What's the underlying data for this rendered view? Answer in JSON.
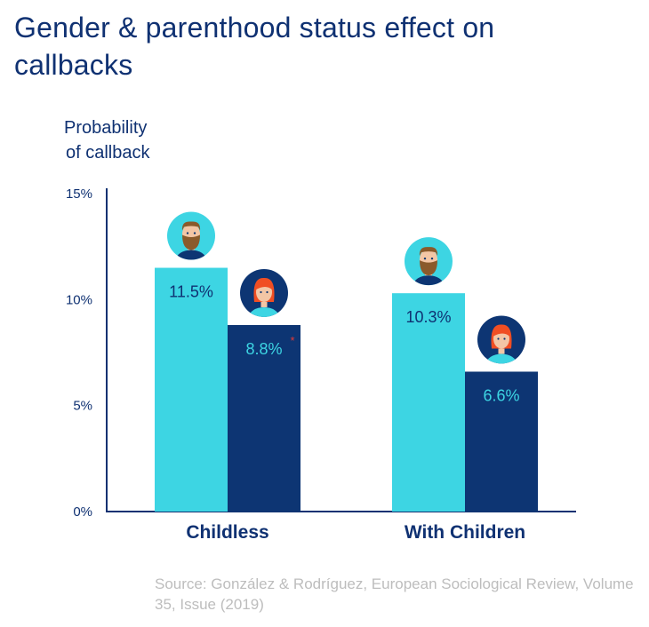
{
  "title": "Gender & parenthood status effect on callbacks",
  "chart_data": {
    "type": "bar",
    "ylabel_lines": [
      "Probability",
      "of callback"
    ],
    "categories": [
      "Childless",
      "With Children"
    ],
    "series": [
      {
        "values": [
          11.5,
          10.3
        ],
        "labels": [
          "11.5%",
          "10.3%"
        ],
        "color": "#3dd5e3",
        "label_color": "#0f3172",
        "icon": "man-avatar-icon",
        "icon_bg": "#3dd5e3"
      },
      {
        "values": [
          8.8,
          6.6
        ],
        "labels": [
          "8.8%",
          "6.6%"
        ],
        "color": "#0d3573",
        "label_color": "#3dd5e3",
        "icon": "woman-avatar-icon",
        "icon_bg": "#0d3573"
      }
    ],
    "ylim": [
      0,
      15
    ],
    "yticks": [
      0,
      5,
      10,
      15
    ],
    "ytick_labels": [
      "0%",
      "5%",
      "10%",
      "15%"
    ],
    "grid": false,
    "annotations": [
      {
        "text": "*",
        "near": "8.8%",
        "color": "#e53935"
      }
    ]
  },
  "source": "Source: González & Rodríguez, European Sociological Review, Volume 35, Issue (2019)"
}
